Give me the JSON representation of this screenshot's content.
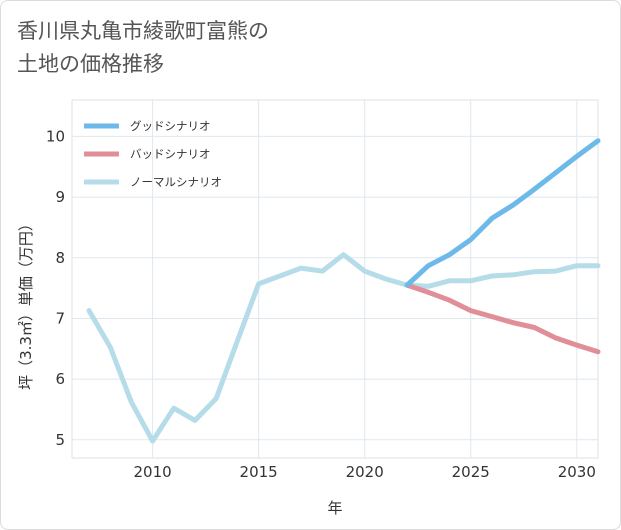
{
  "title": {
    "line1": "香川県丸亀市綾歌町富熊の",
    "line2": "土地の価格推移"
  },
  "chart_data": {
    "type": "line",
    "xlabel": "年",
    "ylabel": "坪（3.3㎡）単価（万円）",
    "xlim": [
      2006.2,
      2031
    ],
    "ylim": [
      4.7,
      10.6
    ],
    "xticks": [
      2010,
      2015,
      2020,
      2025,
      2030
    ],
    "yticks": [
      5,
      6,
      7,
      8,
      9,
      10
    ],
    "grid": true,
    "legend_position": "top-left",
    "series": [
      {
        "name": "グッドシナリオ",
        "color": "#6cb9ea",
        "x": [
          2022,
          2023,
          2024,
          2025,
          2026,
          2027,
          2028,
          2029,
          2030,
          2031
        ],
        "y": [
          7.55,
          7.87,
          8.05,
          8.3,
          8.65,
          8.87,
          9.13,
          9.4,
          9.67,
          9.93
        ]
      },
      {
        "name": "バッドシナリオ",
        "color": "#e08e97",
        "x": [
          2022,
          2023,
          2024,
          2025,
          2026,
          2027,
          2028,
          2029,
          2030,
          2031
        ],
        "y": [
          7.55,
          7.43,
          7.3,
          7.13,
          7.03,
          6.93,
          6.85,
          6.68,
          6.56,
          6.45
        ]
      },
      {
        "name": "ノーマルシナリオ",
        "color": "#b6dcea",
        "x": [
          2007,
          2008,
          2009,
          2010,
          2011,
          2012,
          2013,
          2014,
          2015,
          2016,
          2017,
          2018,
          2019,
          2020,
          2021,
          2022,
          2023,
          2024,
          2025,
          2026,
          2027,
          2028,
          2029,
          2030,
          2031
        ],
        "y": [
          7.13,
          6.53,
          5.62,
          4.98,
          5.52,
          5.32,
          5.68,
          6.63,
          7.57,
          7.7,
          7.83,
          7.78,
          8.05,
          7.78,
          7.65,
          7.55,
          7.53,
          7.62,
          7.62,
          7.7,
          7.72,
          7.77,
          7.78,
          7.87,
          7.87
        ]
      }
    ]
  }
}
